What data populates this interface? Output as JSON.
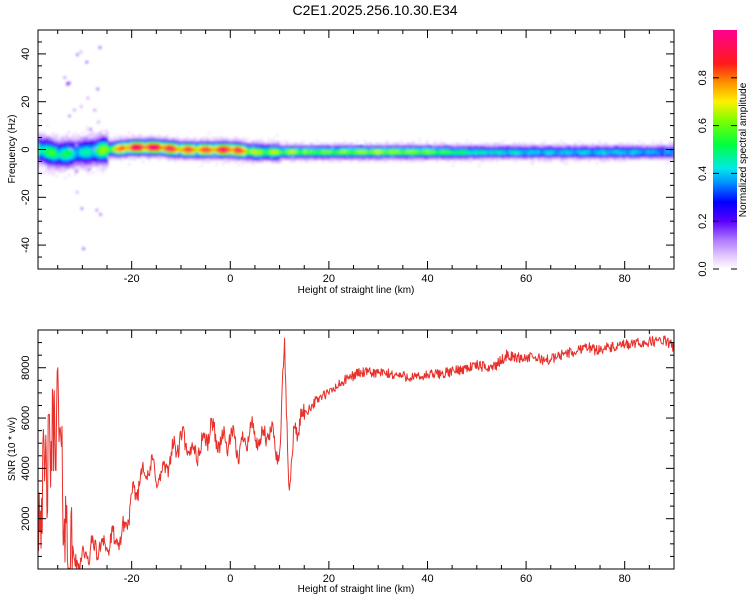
{
  "title": "C2E1.2025.256.10.30.E34",
  "colors": {
    "snr_line": "#e8302a",
    "axis": "#000000"
  },
  "chart_data": [
    {
      "type": "heatmap",
      "name": "spectrogram",
      "xlabel": "Height of straight line (km)",
      "ylabel": "Frequency (Hz)",
      "xlim": [
        -39,
        90
      ],
      "ylim": [
        -50,
        50
      ],
      "xticks": [
        -20,
        0,
        20,
        40,
        60,
        80
      ],
      "yticks": [
        -40,
        -20,
        0,
        20,
        40
      ],
      "grid": false,
      "colorbar": {
        "label": "Normalized spectral amplitude",
        "range": [
          0.0,
          1.0
        ],
        "ticks": [
          0.0,
          0.2,
          0.4,
          0.6,
          0.8
        ],
        "tick_labels": [
          "0.0",
          "0.2",
          "0.4",
          "0.6",
          "0.8"
        ],
        "colormap": "rainbow (white-violet-blue-cyan-green-yellow-red-magenta)"
      },
      "ridge": {
        "x": [
          -39,
          -35,
          -30,
          -25,
          -20,
          -15,
          -10,
          -5,
          0,
          5,
          10,
          20,
          30,
          40,
          50,
          60,
          70,
          80,
          90
        ],
        "frequency": [
          0,
          -2,
          -1,
          0,
          1,
          1,
          0,
          0,
          0,
          -1,
          -1,
          -1,
          -1,
          -1,
          -1,
          -1,
          -1,
          -1,
          -1
        ],
        "amplitude": [
          0.5,
          0.5,
          0.4,
          0.6,
          0.9,
          0.9,
          0.8,
          0.8,
          0.9,
          0.6,
          0.6,
          0.65,
          0.7,
          0.65,
          0.5,
          0.45,
          0.45,
          0.45,
          0.4
        ]
      }
    },
    {
      "type": "line",
      "name": "snr",
      "xlabel": "Height of straight line (km)",
      "ylabel": "SNR (10 * v/v)",
      "xlim": [
        -39,
        90
      ],
      "ylim": [
        0,
        9500
      ],
      "xticks": [
        -20,
        0,
        20,
        40,
        60,
        80
      ],
      "yticks": [
        2000,
        4000,
        6000,
        8000
      ],
      "grid": false,
      "series": [
        {
          "x": [
            -39,
            -37,
            -35,
            -34,
            -33,
            -32,
            -30,
            -28,
            -25,
            -22,
            -21,
            -20,
            -18,
            -16,
            -14,
            -12,
            -10,
            -8,
            -6,
            -4,
            -2,
            0,
            2,
            4,
            6,
            8,
            10,
            11,
            12,
            13,
            14,
            16,
            18,
            20,
            22,
            24,
            26,
            30,
            34,
            38,
            40,
            44,
            48,
            50,
            52,
            54,
            56,
            58,
            60,
            62,
            64,
            66,
            68,
            70,
            72,
            74,
            76,
            78,
            80,
            84,
            88,
            90
          ],
          "y": [
            2500,
            4000,
            6500,
            3000,
            800,
            300,
            400,
            800,
            1000,
            1200,
            2000,
            2600,
            3800,
            4000,
            3600,
            4500,
            5200,
            4600,
            4800,
            5600,
            5000,
            5200,
            4700,
            5600,
            5000,
            5500,
            4500,
            8800,
            3000,
            5500,
            5800,
            6400,
            6800,
            7000,
            7300,
            7600,
            7800,
            7800,
            7700,
            7600,
            7700,
            7800,
            8000,
            8100,
            8000,
            8100,
            8500,
            8400,
            8400,
            8400,
            8300,
            8400,
            8600,
            8600,
            8900,
            8700,
            8800,
            8800,
            8900,
            9000,
            9100,
            8800
          ]
        }
      ]
    }
  ]
}
